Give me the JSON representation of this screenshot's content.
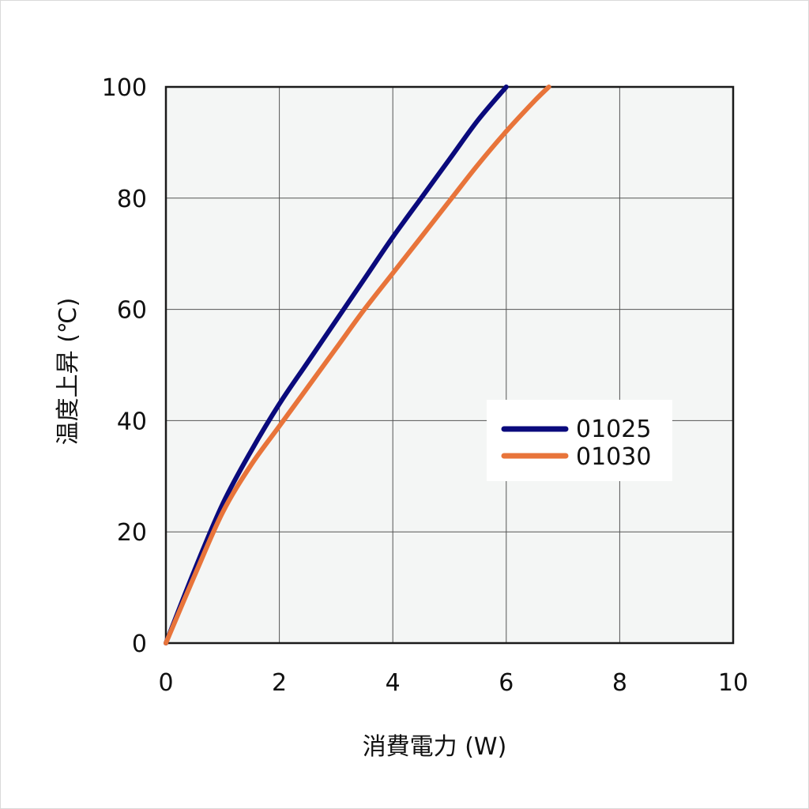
{
  "chart_data": {
    "type": "line",
    "xlabel": "消費電力 (W)",
    "ylabel": "温度上昇 (℃)",
    "xlim": [
      0,
      10
    ],
    "ylim": [
      0,
      100
    ],
    "x_ticks": [
      "0",
      "2",
      "4",
      "6",
      "8",
      "10"
    ],
    "y_ticks": [
      "0",
      "20",
      "40",
      "60",
      "80",
      "100"
    ],
    "grid": true,
    "legend_position": "right-middle",
    "series": [
      {
        "name": "01025",
        "color": "#0a0a7c",
        "x": [
          0,
          0.5,
          1.0,
          1.5,
          2.0,
          2.5,
          3.0,
          3.5,
          4.0,
          4.5,
          5.0,
          5.5,
          6.0
        ],
        "y": [
          0,
          13,
          25,
          34.5,
          43,
          50.5,
          58,
          65.5,
          73,
          80,
          87,
          94,
          100
        ]
      },
      {
        "name": "01030",
        "color": "#e8743a",
        "x": [
          0,
          0.5,
          1.0,
          1.5,
          2.0,
          2.5,
          3.0,
          3.5,
          4.0,
          4.5,
          5.0,
          5.5,
          6.0,
          6.5,
          6.75
        ],
        "y": [
          0,
          12,
          23.5,
          32,
          39,
          46,
          53,
          60,
          66.5,
          73,
          79.5,
          86,
          92,
          97.5,
          100
        ]
      }
    ]
  }
}
